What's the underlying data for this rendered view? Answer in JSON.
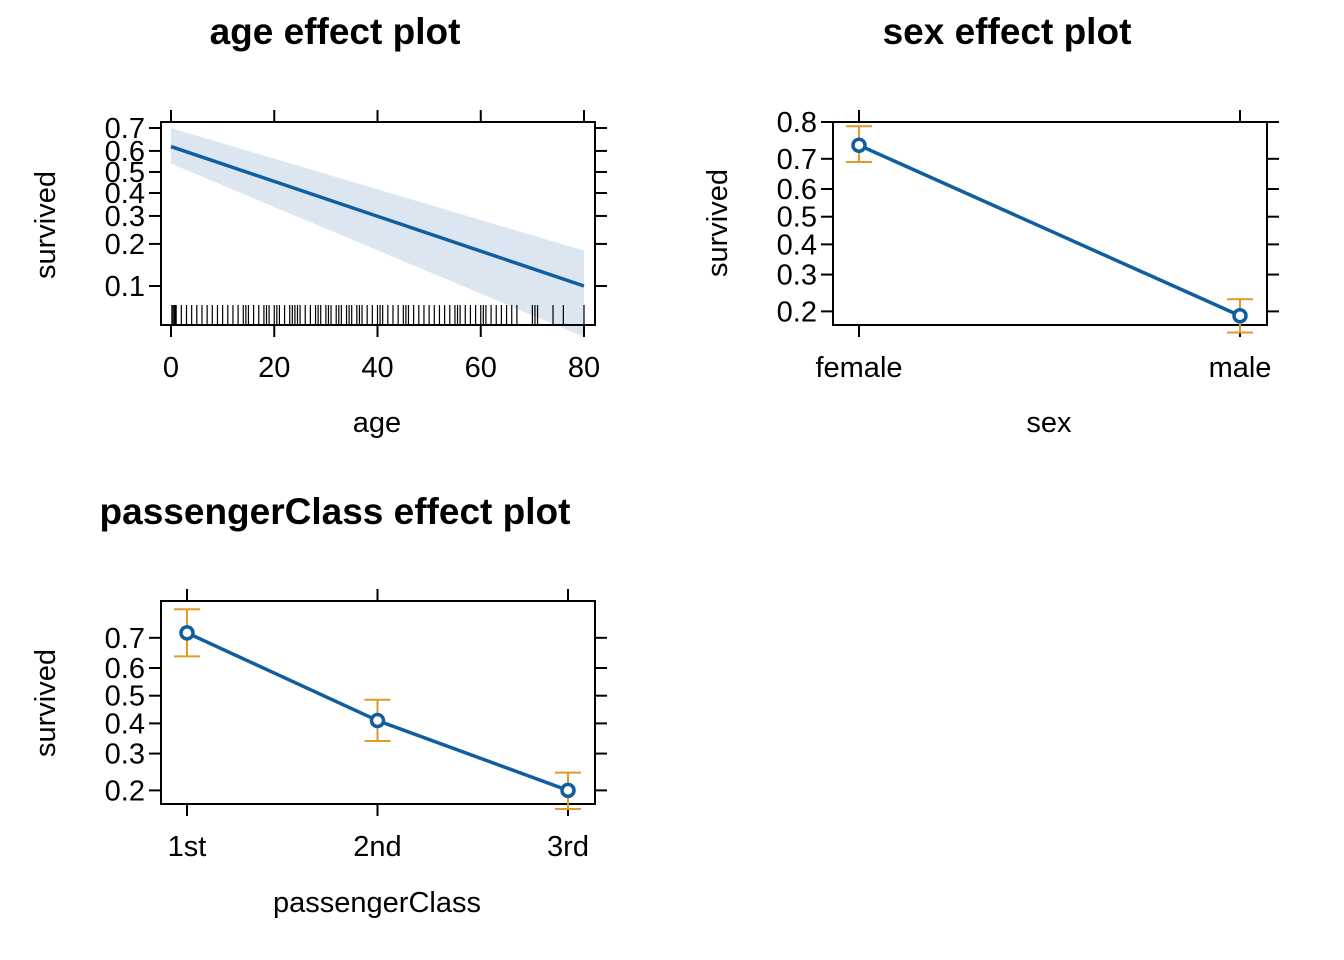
{
  "colors": {
    "line": "#105ea0",
    "band": "#dbe6f1",
    "errorbar": "#e09a2a",
    "axis": "#000000"
  },
  "chart_data": [
    {
      "type": "line",
      "title": "age effect plot",
      "xlabel": "age",
      "ylabel": "survived",
      "xlim": [
        0,
        80
      ],
      "ylim": [
        0.1,
        0.7
      ],
      "xticks": [
        0,
        20,
        40,
        60,
        80
      ],
      "yticks": [
        0.1,
        0.2,
        0.3,
        0.4,
        0.5,
        0.6,
        0.7
      ],
      "ytick_labels": [
        "0.1",
        "0.2",
        "0.3",
        "0.4",
        "0.5",
        "0.6",
        "0.7"
      ],
      "y_scale": "logit",
      "series": [
        {
          "x": [
            0,
            80
          ],
          "y": [
            0.62,
            0.1
          ]
        }
      ],
      "confidence_band": {
        "x": [
          0,
          80
        ],
        "lower": [
          0.54,
          0.04
        ],
        "upper": [
          0.7,
          0.18
        ]
      },
      "rug": [
        0.17,
        0.42,
        0.67,
        0.75,
        0.83,
        0.92,
        1,
        2,
        3,
        4,
        5,
        6,
        7,
        8,
        9,
        10,
        11,
        12,
        13,
        14,
        14.5,
        15,
        16,
        17,
        18,
        18.5,
        19,
        20,
        20.5,
        21,
        22,
        23,
        23.5,
        24,
        24.5,
        25,
        26,
        27,
        28,
        28.5,
        29,
        30,
        30.5,
        31,
        32,
        32.5,
        33,
        34,
        34.5,
        35,
        36,
        36.5,
        37,
        38,
        39,
        40,
        40.5,
        41,
        42,
        43,
        44,
        45,
        45.5,
        46,
        47,
        48,
        49,
        50,
        51,
        52,
        53,
        54,
        55,
        55.5,
        56,
        57,
        58,
        59,
        60,
        60.5,
        61,
        62,
        63,
        64,
        65,
        66,
        67,
        70,
        70.5,
        71,
        74,
        76,
        80
      ]
    },
    {
      "type": "line",
      "title": "sex effect plot",
      "xlabel": "sex",
      "ylabel": "survived",
      "categories": [
        "female",
        "male"
      ],
      "ylim": [
        0.17,
        0.8
      ],
      "yticks": [
        0.2,
        0.3,
        0.4,
        0.5,
        0.6,
        0.7,
        0.8
      ],
      "ytick_labels": [
        "0.2",
        "0.3",
        "0.4",
        "0.5",
        "0.6",
        "0.7",
        "0.8"
      ],
      "y_scale": "logit",
      "series": [
        {
          "values": [
            0.74,
            0.19
          ],
          "lower": [
            0.69,
            0.155
          ],
          "upper": [
            0.79,
            0.23
          ]
        }
      ]
    },
    {
      "type": "line",
      "title": "passengerClass effect plot",
      "xlabel": "passengerClass",
      "ylabel": "survived",
      "categories": [
        "1st",
        "2nd",
        "3rd"
      ],
      "ylim": [
        0.17,
        0.8
      ],
      "yticks": [
        0.2,
        0.3,
        0.4,
        0.5,
        0.6,
        0.7
      ],
      "ytick_labels": [
        "0.2",
        "0.3",
        "0.4",
        "0.5",
        "0.6",
        "0.7"
      ],
      "y_scale": "logit",
      "series": [
        {
          "values": [
            0.715,
            0.41,
            0.2
          ],
          "lower": [
            0.64,
            0.34,
            0.16
          ],
          "upper": [
            0.78,
            0.485,
            0.245
          ]
        }
      ]
    }
  ]
}
